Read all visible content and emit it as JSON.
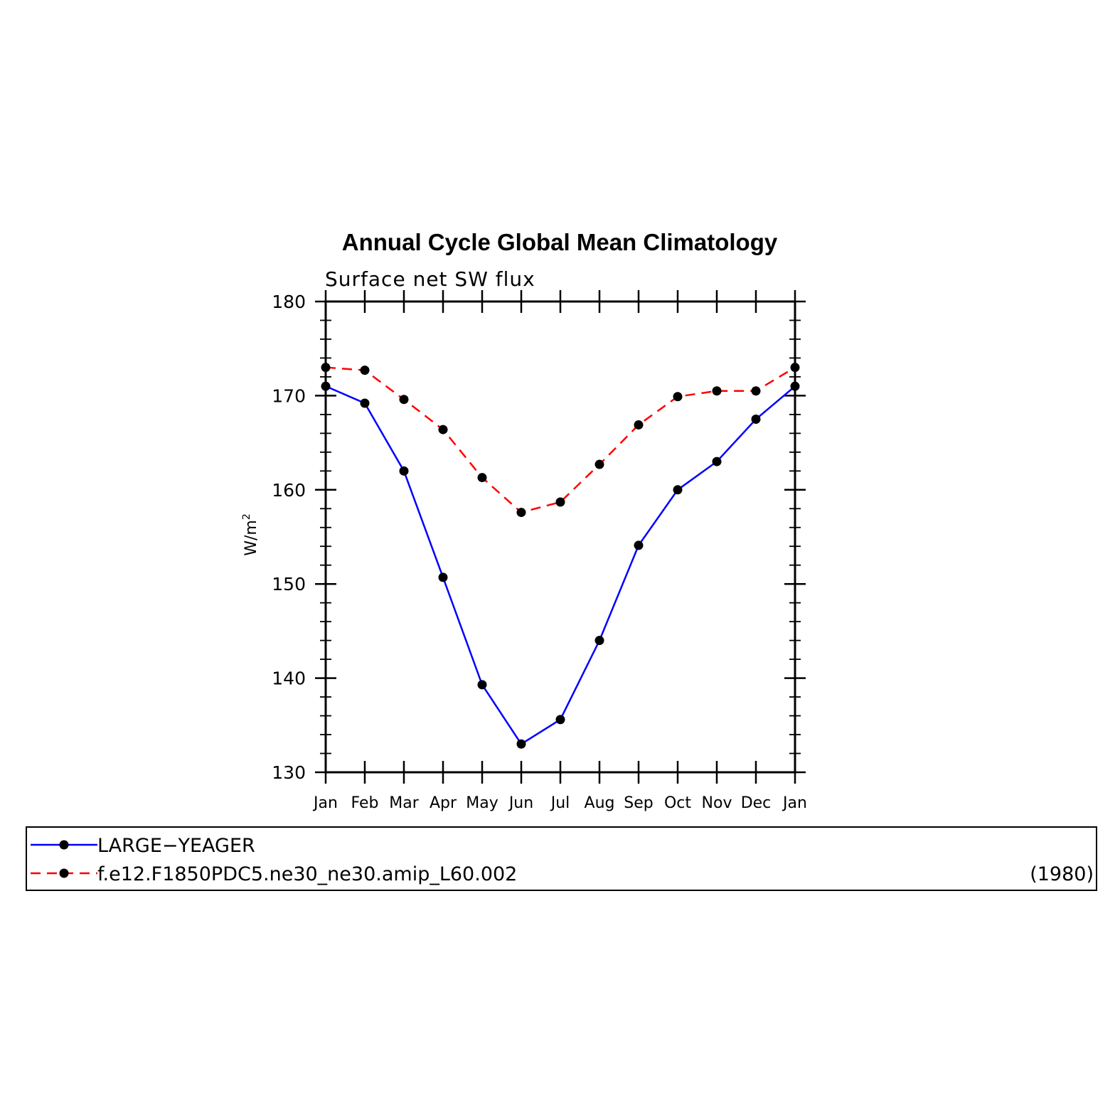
{
  "chart_data": {
    "type": "line",
    "title": "Annual Cycle Global Mean Climatology",
    "subtitle": "Surface net SW flux",
    "ylabel_base": "W/m",
    "ylabel_sup": "2",
    "xlabel": "",
    "ylim": [
      130,
      180
    ],
    "yticks": [
      130,
      140,
      150,
      160,
      170,
      180
    ],
    "categories": [
      "Jan",
      "Feb",
      "Mar",
      "Apr",
      "May",
      "Jun",
      "Jul",
      "Aug",
      "Sep",
      "Oct",
      "Nov",
      "Dec",
      "Jan"
    ],
    "series": [
      {
        "name": "LARGE−YEAGER",
        "color": "#0000ff",
        "dash": "solid",
        "values": [
          171.0,
          169.2,
          162.0,
          150.7,
          139.3,
          133.0,
          135.6,
          144.0,
          154.1,
          160.0,
          163.0,
          167.5,
          171.0
        ]
      },
      {
        "name": "f.e12.F1850PDC5.ne30_ne30.amip_L60.002",
        "color": "#ff0000",
        "dash": "dashed",
        "values": [
          173.0,
          172.7,
          169.6,
          166.4,
          161.3,
          157.6,
          158.7,
          162.7,
          166.9,
          169.9,
          170.5,
          170.5,
          173.0
        ]
      }
    ],
    "legend_placement": "below",
    "legend_note": "(1980)",
    "grid": false
  }
}
